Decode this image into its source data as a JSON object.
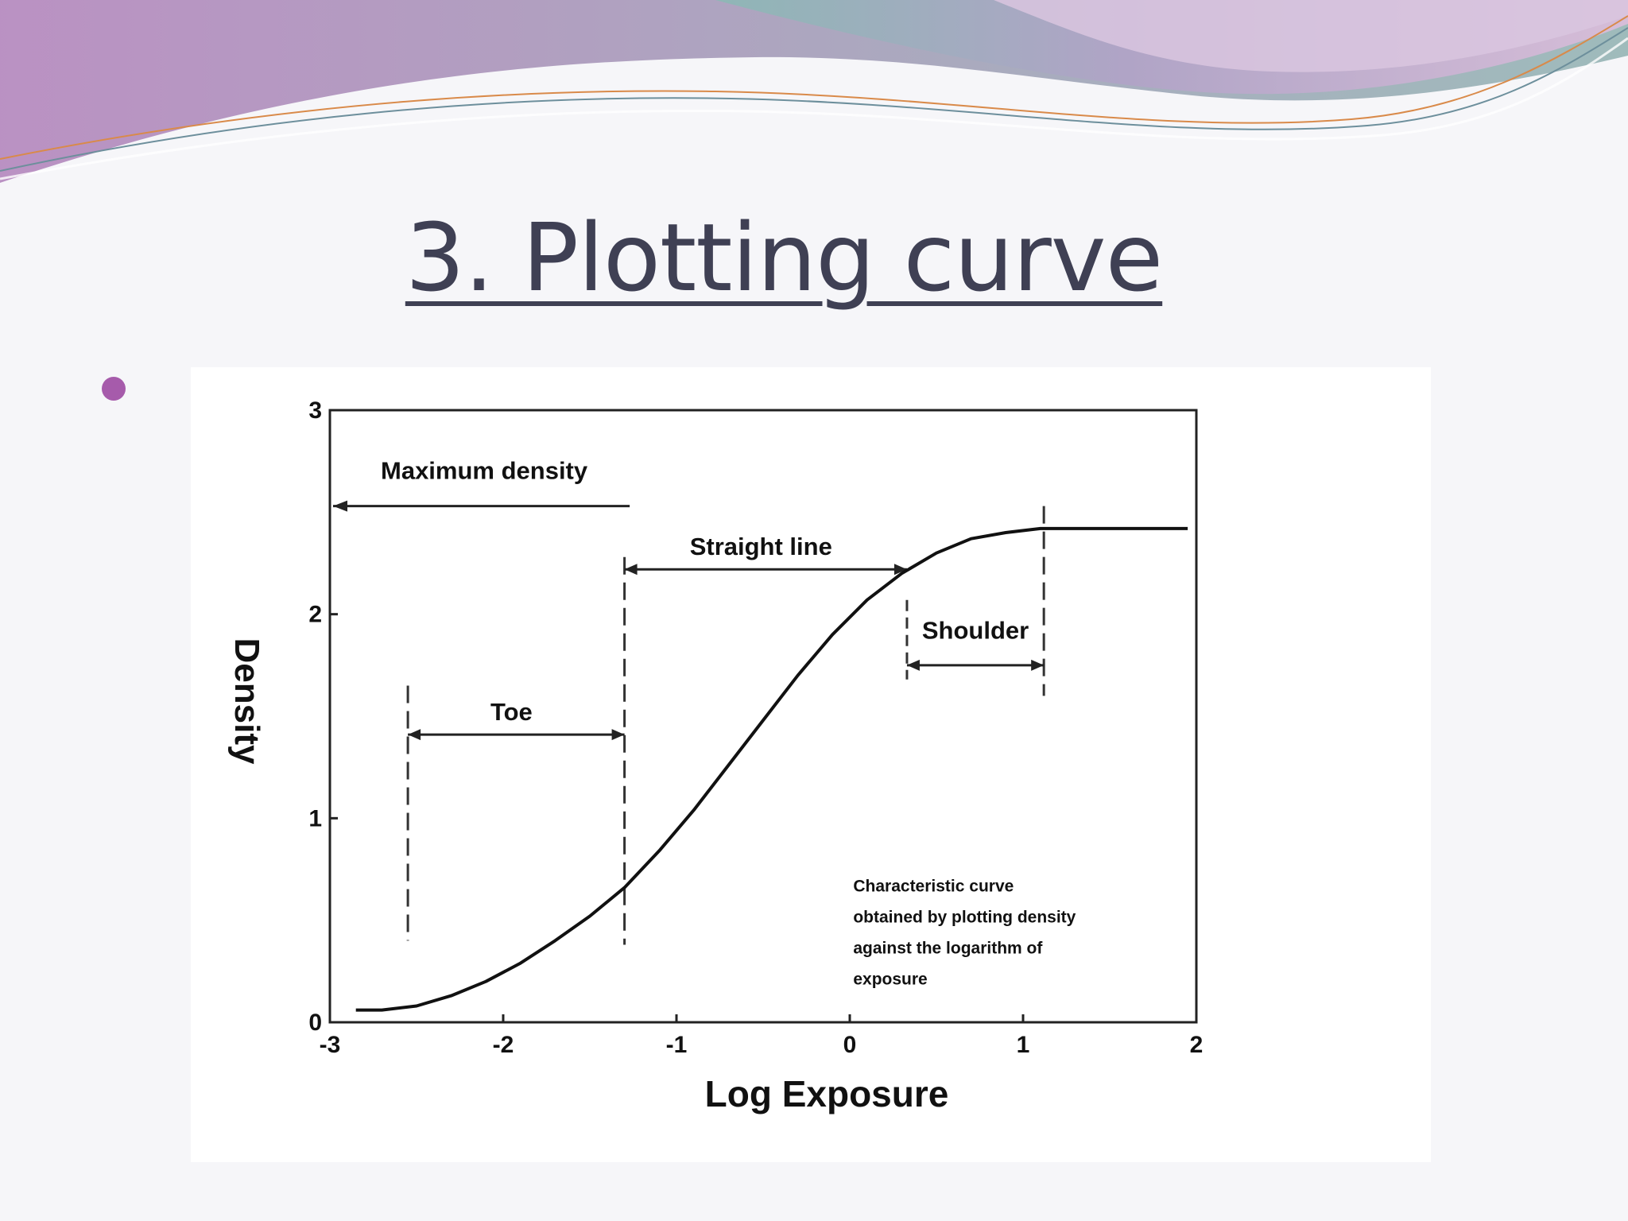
{
  "slide": {
    "title": "3. Plotting curve",
    "colors": {
      "title": "#3f4054",
      "bullet": "#a65bab"
    }
  },
  "chart_data": {
    "type": "line",
    "title": "",
    "xlabel": "Log Exposure",
    "ylabel": "Density",
    "xlim": [
      -3,
      2
    ],
    "ylim": [
      0,
      3
    ],
    "xticks": [
      "-3",
      "-2",
      "-1",
      "0",
      "1",
      "2"
    ],
    "yticks": [
      "0",
      "1",
      "2",
      "3"
    ],
    "grid": false,
    "series": [
      {
        "x": [
          -2.85,
          -2.7,
          -2.5,
          -2.3,
          -2.1,
          -1.9,
          -1.7,
          -1.5,
          -1.3,
          -1.1,
          -0.9,
          -0.7,
          -0.5,
          -0.3,
          -0.1,
          0.1,
          0.3,
          0.5,
          0.7,
          0.9,
          1.1,
          1.3,
          1.5,
          1.7,
          1.95
        ],
        "y": [
          0.06,
          0.06,
          0.08,
          0.13,
          0.2,
          0.29,
          0.4,
          0.52,
          0.66,
          0.84,
          1.04,
          1.26,
          1.48,
          1.7,
          1.9,
          2.07,
          2.2,
          2.3,
          2.37,
          2.4,
          2.42,
          2.42,
          2.42,
          2.42,
          2.42
        ]
      }
    ],
    "regions": [
      {
        "label": "Toe",
        "x_start": -2.55,
        "x_end": -1.3,
        "arrow_y": 1.41,
        "label_y": 1.48
      },
      {
        "label": "Straight line",
        "x_start": -1.3,
        "x_end": 0.33,
        "arrow_y": 2.22,
        "label_y": 2.29
      },
      {
        "label": "Shoulder",
        "x_start": 0.33,
        "x_end": 1.12,
        "arrow_y": 1.75,
        "label_y": 1.88
      }
    ],
    "max_density": {
      "label": "Maximum density",
      "arrow_y": 2.53,
      "x_start": -3,
      "x_end": -1.27
    },
    "annotation": [
      "Characteristic curve",
      "obtained by plotting density",
      "against the logarithm of",
      "exposure"
    ]
  }
}
